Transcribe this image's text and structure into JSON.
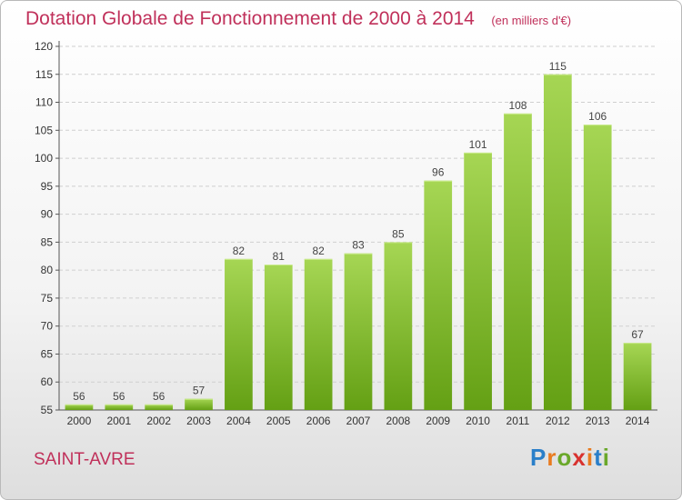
{
  "title": "Dotation Globale de Fonctionnement de 2000 à 2014",
  "unit": "(en milliers d'€)",
  "commune": "SAINT-AVRE",
  "logo": {
    "letters": [
      "P",
      "r",
      "o",
      "x",
      "i",
      "t",
      "i"
    ],
    "colors": [
      "#2a7fc9",
      "#e97b1f",
      "#6aa82a",
      "#d8322f",
      "#e97b1f",
      "#2a7fc9",
      "#6aa82a"
    ]
  },
  "colors": {
    "bar_light": "#a6d654",
    "bar_dark": "#64a014",
    "title": "#c0305a",
    "grid": "#cfcfcf"
  },
  "chart_data": {
    "type": "bar",
    "categories": [
      "2000",
      "2001",
      "2002",
      "2003",
      "2004",
      "2005",
      "2006",
      "2007",
      "2008",
      "2009",
      "2010",
      "2011",
      "2012",
      "2013",
      "2014"
    ],
    "values": [
      56,
      56,
      56,
      57,
      82,
      81,
      82,
      83,
      85,
      96,
      101,
      108,
      115,
      106,
      67
    ],
    "data_labels": [
      "56",
      "56",
      "56",
      "57",
      "82",
      "81",
      "82",
      "83",
      "85",
      "96",
      "101",
      "108",
      "115",
      "106",
      "67"
    ],
    "title": "Dotation Globale de Fonctionnement de 2000 à 2014",
    "subtitle": "(en milliers d'€)",
    "xlabel": "",
    "ylabel": "",
    "ylim": [
      55,
      120
    ],
    "yticks": [
      55,
      60,
      65,
      70,
      75,
      80,
      85,
      90,
      95,
      100,
      105,
      110,
      115,
      120
    ],
    "grid": true,
    "legend": "none"
  }
}
